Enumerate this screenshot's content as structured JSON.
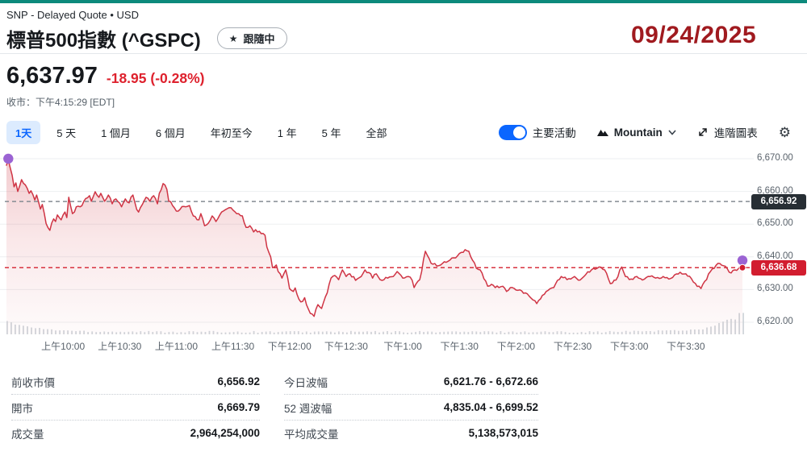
{
  "header": {
    "exchange_line": "SNP - Delayed Quote • USD",
    "title": "標普500指數 (^GSPC)",
    "follow_label": "跟隨中",
    "date_overlay": "09/24/2025",
    "price": "6,637.97",
    "change": "-18.95 (-0.28%)",
    "market_status": "收市：下午4:15:29 [EDT]"
  },
  "icons": {
    "star": "★",
    "gear": "⚙"
  },
  "toolbar": {
    "ranges": [
      {
        "label": "1天",
        "selected": true
      },
      {
        "label": "5 天",
        "selected": false
      },
      {
        "label": "1 個月",
        "selected": false
      },
      {
        "label": "6 個月",
        "selected": false
      },
      {
        "label": "年初至今",
        "selected": false
      },
      {
        "label": "1 年",
        "selected": false
      },
      {
        "label": "5 年",
        "selected": false
      },
      {
        "label": "全部",
        "selected": false
      }
    ],
    "key_events_label": "主要活動",
    "key_events_on": true,
    "chart_type_label": "Mountain",
    "advanced_chart_label": "進階圖表"
  },
  "chart_data": {
    "type": "area",
    "x_unit": "minutes since 09:30",
    "x_range_minutes": [
      0,
      390
    ],
    "x_axis_labels": [
      {
        "t": 30,
        "label": "上午10:00"
      },
      {
        "t": 60,
        "label": "上午10:30"
      },
      {
        "t": 90,
        "label": "上午11:00"
      },
      {
        "t": 120,
        "label": "上午11:30"
      },
      {
        "t": 150,
        "label": "下午12:00"
      },
      {
        "t": 180,
        "label": "下午12:30"
      },
      {
        "t": 210,
        "label": "下午1:00"
      },
      {
        "t": 240,
        "label": "下午1:30"
      },
      {
        "t": 270,
        "label": "下午2:00"
      },
      {
        "t": 300,
        "label": "下午2:30"
      },
      {
        "t": 330,
        "label": "下午3:00"
      },
      {
        "t": 360,
        "label": "下午3:30"
      }
    ],
    "y_ticks": [
      {
        "value": 6670,
        "label": "6,670.00"
      },
      {
        "value": 6660,
        "label": "6,660.00"
      },
      {
        "value": 6650,
        "label": "6,650.00"
      },
      {
        "value": 6640,
        "label": "6,640.00"
      },
      {
        "value": 6630,
        "label": "6,630.00"
      },
      {
        "value": 6620,
        "label": "6,620.00"
      }
    ],
    "previous_close": {
      "value": 6656.92,
      "label": "6,656.92"
    },
    "current": {
      "value": 6636.68,
      "label": "6,636.68"
    },
    "event_markers": [
      {
        "t": 1,
        "price": 6670.0
      },
      {
        "t": 390,
        "price": 6638.9
      }
    ],
    "last_dot": {
      "t": 390,
      "price": 6636.68
    },
    "colors": {
      "line": "#cf3444",
      "fill": "#d13a46",
      "grid": "#edeff1",
      "prev_close_line": "#858c93",
      "current_line": "#d8323f",
      "prev_badge_bg": "#272e34",
      "current_badge_bg": "#d21d2f",
      "event_dot": "#9b63d3",
      "volume_bar": "#ccd1d7"
    },
    "series": [
      {
        "name": "^GSPC 1天",
        "points": [
          [
            0,
            6668.0
          ],
          [
            1,
            6669.6
          ],
          [
            2,
            6667.2
          ],
          [
            3,
            6665.0
          ],
          [
            4,
            6661.4
          ],
          [
            5,
            6662.6
          ],
          [
            6,
            6660.0
          ],
          [
            8,
            6663.6
          ],
          [
            10,
            6662.0
          ],
          [
            12,
            6659.4
          ],
          [
            13,
            6660.2
          ],
          [
            15,
            6657.4
          ],
          [
            16,
            6658.9
          ],
          [
            18,
            6654.6
          ],
          [
            19,
            6656.0
          ],
          [
            21,
            6650.2
          ],
          [
            23,
            6648.1
          ],
          [
            25,
            6651.6
          ],
          [
            26,
            6650.8
          ],
          [
            27,
            6652.8
          ],
          [
            29,
            6651.3
          ],
          [
            31,
            6653.7
          ],
          [
            32,
            6652.0
          ],
          [
            33,
            6658.2
          ],
          [
            35,
            6653.2
          ],
          [
            37,
            6655.3
          ],
          [
            39,
            6655.3
          ],
          [
            41,
            6657.0
          ],
          [
            44,
            6658.7
          ],
          [
            45,
            6657.0
          ],
          [
            47,
            6659.9
          ],
          [
            49,
            6658.2
          ],
          [
            50,
            6659.4
          ],
          [
            52,
            6657.0
          ],
          [
            54,
            6658.9
          ],
          [
            56,
            6656.2
          ],
          [
            58,
            6657.7
          ],
          [
            61,
            6655.3
          ],
          [
            63,
            6657.7
          ],
          [
            65,
            6656.5
          ],
          [
            67,
            6658.9
          ],
          [
            69,
            6654.5
          ],
          [
            70,
            6653.7
          ],
          [
            72,
            6656.0
          ],
          [
            74,
            6658.2
          ],
          [
            76,
            6657.0
          ],
          [
            78,
            6658.7
          ],
          [
            80,
            6656.2
          ],
          [
            81,
            6659.4
          ],
          [
            83,
            6662.4
          ],
          [
            85,
            6660.6
          ],
          [
            86,
            6657.0
          ],
          [
            88,
            6655.7
          ],
          [
            90,
            6654.0
          ],
          [
            92,
            6654.5
          ],
          [
            94,
            6655.4
          ],
          [
            97,
            6655.7
          ],
          [
            99,
            6652.5
          ],
          [
            102,
            6651.3
          ],
          [
            103,
            6653.2
          ],
          [
            105,
            6649.5
          ],
          [
            107,
            6650.3
          ],
          [
            109,
            6652.5
          ],
          [
            111,
            6650.8
          ],
          [
            114,
            6653.7
          ],
          [
            116,
            6654.4
          ],
          [
            119,
            6655.0
          ],
          [
            121,
            6653.8
          ],
          [
            123,
            6653.2
          ],
          [
            125,
            6652.5
          ],
          [
            127,
            6649.0
          ],
          [
            129,
            6649.5
          ],
          [
            131,
            6647.6
          ],
          [
            132,
            6648.3
          ],
          [
            133,
            6647.6
          ],
          [
            135,
            6647.1
          ],
          [
            137,
            6646.6
          ],
          [
            138,
            6643.0
          ],
          [
            140,
            6640.0
          ],
          [
            141,
            6636.7
          ],
          [
            143,
            6637.5
          ],
          [
            144,
            6635.5
          ],
          [
            146,
            6633.5
          ],
          [
            148,
            6636.0
          ],
          [
            150,
            6630.3
          ],
          [
            152,
            6629.4
          ],
          [
            153,
            6630.5
          ],
          [
            155,
            6627.0
          ],
          [
            156,
            6626.2
          ],
          [
            158,
            6627.5
          ],
          [
            160,
            6624.0
          ],
          [
            162,
            6622.5
          ],
          [
            163,
            6621.8
          ],
          [
            165,
            6625.4
          ],
          [
            167,
            6624.2
          ],
          [
            170,
            6629.0
          ],
          [
            172,
            6633.5
          ],
          [
            174,
            6634.3
          ],
          [
            176,
            6633.0
          ],
          [
            178,
            6636.0
          ],
          [
            180,
            6634.0
          ],
          [
            182,
            6634.8
          ],
          [
            185,
            6632.8
          ],
          [
            188,
            6634.0
          ],
          [
            190,
            6636.0
          ],
          [
            192,
            6635.2
          ],
          [
            194,
            6633.5
          ],
          [
            196,
            6634.8
          ],
          [
            199,
            6632.8
          ],
          [
            202,
            6633.5
          ],
          [
            205,
            6634.0
          ],
          [
            207,
            6635.5
          ],
          [
            210,
            6633.5
          ],
          [
            213,
            6634.0
          ],
          [
            215,
            6632.8
          ],
          [
            216,
            6630.6
          ],
          [
            219,
            6633.0
          ],
          [
            222,
            6641.7
          ],
          [
            225,
            6638.0
          ],
          [
            229,
            6637.3
          ],
          [
            235,
            6639.0
          ],
          [
            240,
            6641.0
          ],
          [
            243,
            6642.2
          ],
          [
            245,
            6641.7
          ],
          [
            249,
            6636.5
          ],
          [
            251,
            6636.0
          ],
          [
            255,
            6631.0
          ],
          [
            257,
            6631.6
          ],
          [
            261,
            6630.6
          ],
          [
            263,
            6631.0
          ],
          [
            265,
            6629.4
          ],
          [
            267,
            6630.6
          ],
          [
            272,
            6629.9
          ],
          [
            280,
            6626.6
          ],
          [
            281,
            6625.7
          ],
          [
            286,
            6629.4
          ],
          [
            290,
            6630.6
          ],
          [
            294,
            6634.0
          ],
          [
            299,
            6633.2
          ],
          [
            301,
            6634.0
          ],
          [
            304,
            6632.9
          ],
          [
            310,
            6636.0
          ],
          [
            314,
            6636.9
          ],
          [
            317,
            6636.0
          ],
          [
            320,
            6631.8
          ],
          [
            323,
            6632.9
          ],
          [
            326,
            6636.9
          ],
          [
            328,
            6634.0
          ],
          [
            331,
            6633.2
          ],
          [
            334,
            6634.0
          ],
          [
            337,
            6632.9
          ],
          [
            341,
            6634.0
          ],
          [
            344,
            6633.5
          ],
          [
            348,
            6634.0
          ],
          [
            351,
            6633.2
          ],
          [
            357,
            6635.3
          ],
          [
            360,
            6634.8
          ],
          [
            364,
            6632.3
          ],
          [
            368,
            6630.3
          ],
          [
            373,
            6635.5
          ],
          [
            377,
            6638.0
          ],
          [
            380,
            6637.3
          ],
          [
            383,
            6635.3
          ],
          [
            386,
            6636.0
          ],
          [
            390,
            6636.7
          ]
        ]
      }
    ]
  },
  "stats": {
    "columns": [
      {
        "rows": [
          {
            "label": "前收市價",
            "value": "6,656.92"
          },
          {
            "label": "開市",
            "value": "6,669.79"
          },
          {
            "label": "成交量",
            "value": "2,964,254,000"
          }
        ]
      },
      {
        "rows": [
          {
            "label": "今日波幅",
            "value": "6,621.76 - 6,672.66"
          },
          {
            "label": "52 週波幅",
            "value": "4,835.04 - 6,699.52"
          },
          {
            "label": "平均成交量",
            "value": "5,138,573,015"
          }
        ]
      }
    ]
  }
}
